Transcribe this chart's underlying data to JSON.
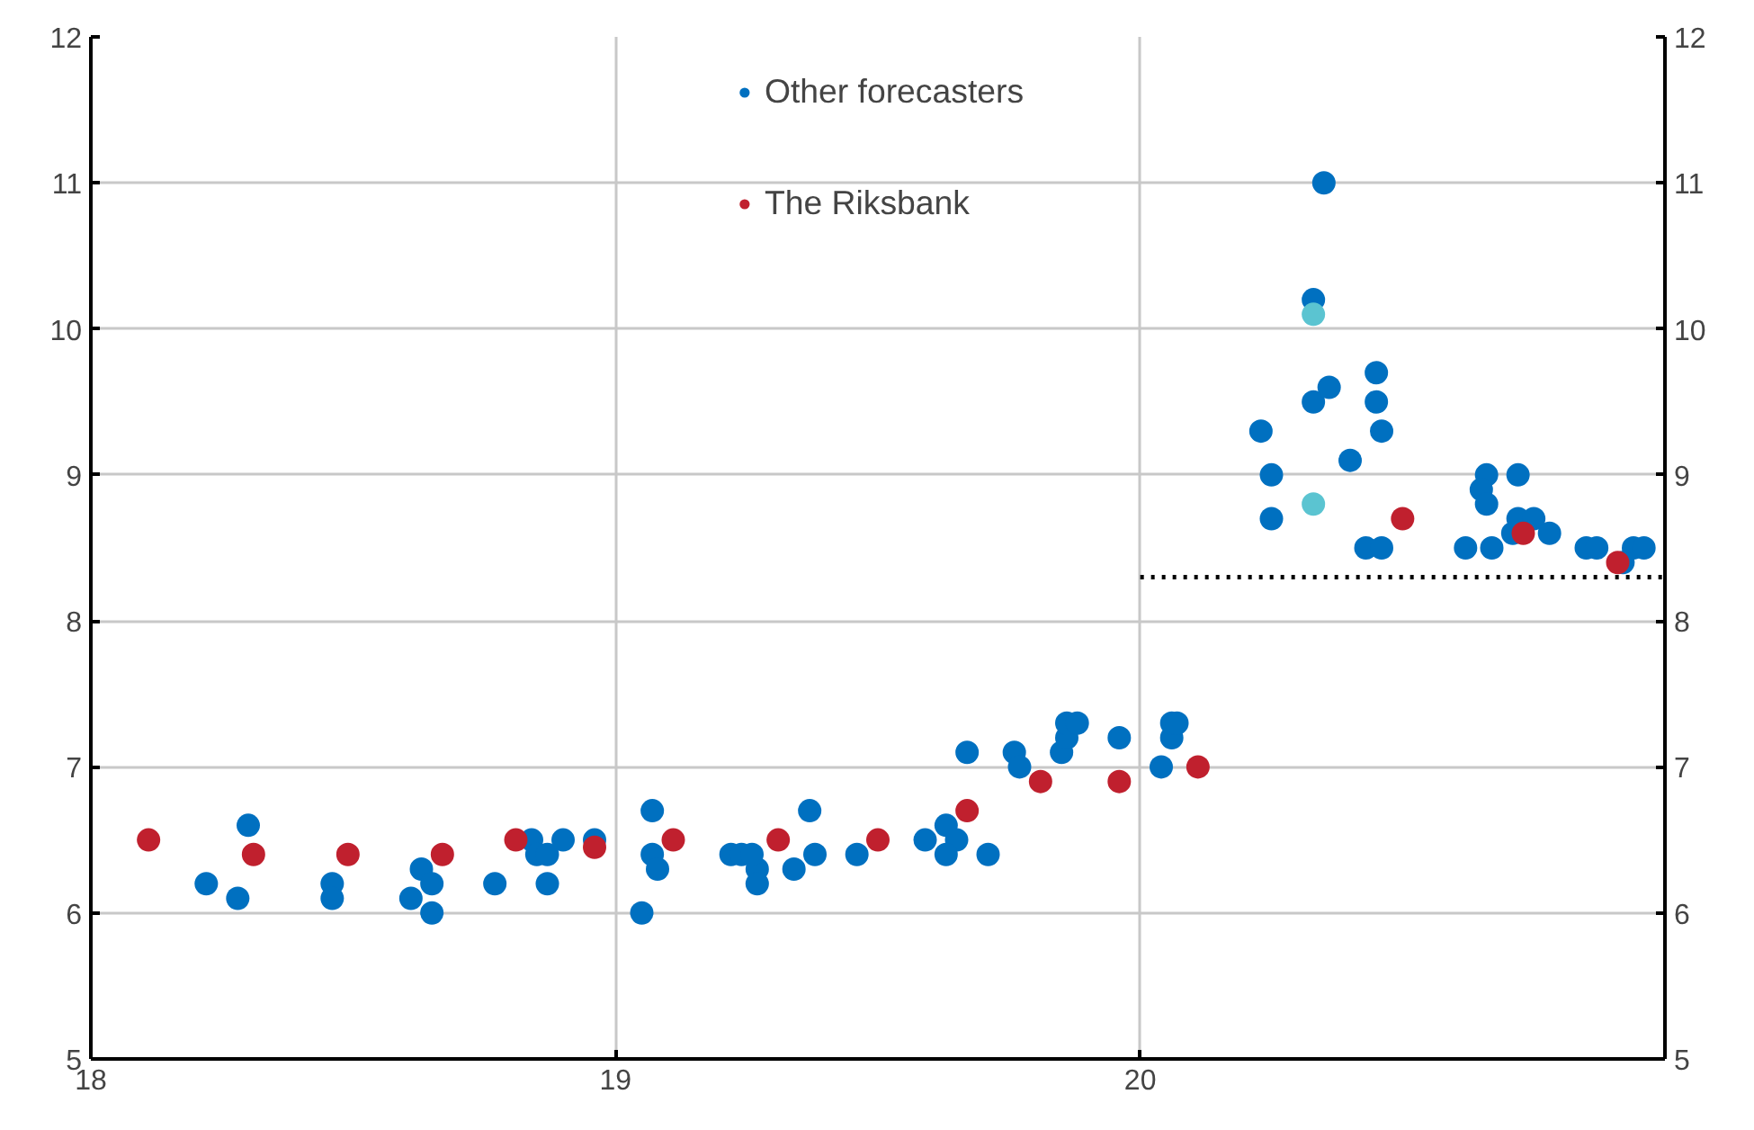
{
  "chart_data": {
    "type": "scatter",
    "series": [
      {
        "name": "Other forecasters",
        "color": "#0070c0",
        "marker": "circle",
        "x": [
          18.22,
          18.28,
          18.3,
          18.46,
          18.46,
          18.61,
          18.63,
          18.65,
          18.65,
          18.77,
          18.84,
          18.85,
          18.87,
          18.87,
          18.9,
          18.96,
          19.05,
          19.07,
          19.07,
          19.08,
          19.22,
          19.24,
          19.27,
          19.27,
          19.26,
          19.34,
          19.37,
          19.38,
          19.46,
          19.59,
          19.63,
          19.65,
          19.63,
          19.71,
          19.67,
          19.76,
          19.77,
          19.85,
          19.86,
          19.86,
          19.88,
          19.96,
          20.04,
          20.06,
          20.06,
          20.07,
          20.35,
          20.33,
          20.23,
          20.25,
          20.25,
          20.33,
          20.36,
          20.45,
          20.45,
          20.46,
          20.4,
          20.43,
          20.46,
          20.62,
          20.66,
          20.65,
          20.66,
          20.67,
          20.72,
          20.72,
          20.71,
          20.75,
          20.78,
          20.85,
          20.87,
          20.94,
          20.96,
          20.92
        ],
        "values": [
          6.2,
          6.1,
          6.6,
          6.2,
          6.1,
          6.1,
          6.3,
          6.2,
          6.0,
          6.2,
          6.5,
          6.4,
          6.4,
          6.2,
          6.5,
          6.5,
          6.0,
          6.7,
          6.4,
          6.3,
          6.4,
          6.4,
          6.3,
          6.2,
          6.4,
          6.3,
          6.7,
          6.4,
          6.4,
          6.5,
          6.6,
          6.5,
          6.4,
          6.4,
          7.1,
          7.1,
          7.0,
          7.1,
          7.2,
          7.3,
          7.3,
          7.2,
          7.0,
          7.2,
          7.3,
          7.3,
          11.0,
          10.2,
          9.3,
          9.0,
          8.7,
          9.5,
          9.6,
          9.7,
          9.5,
          9.3,
          9.1,
          8.5,
          8.5,
          8.5,
          9.0,
          8.9,
          8.8,
          8.5,
          9.0,
          8.7,
          8.6,
          8.7,
          8.6,
          8.5,
          8.5,
          8.5,
          8.5,
          8.4
        ]
      },
      {
        "color": "#5bc4d1",
        "marker": "circle",
        "x": [
          20.33,
          20.33
        ],
        "values": [
          10.1,
          8.8
        ]
      },
      {
        "name": "The Riksbank",
        "color": "#c0202e",
        "marker": "circle",
        "x": [
          18.11,
          18.31,
          18.49,
          18.67,
          18.81,
          18.96,
          19.11,
          19.31,
          19.5,
          19.67,
          19.81,
          19.96,
          20.11,
          20.5,
          20.73,
          20.91
        ],
        "values": [
          6.5,
          6.4,
          6.4,
          6.4,
          6.5,
          6.45,
          6.5,
          6.5,
          6.5,
          6.7,
          6.9,
          6.9,
          7.0,
          8.7,
          8.6,
          8.4
        ]
      },
      {
        "type": "line",
        "color": "#000000",
        "line_style": "dotted",
        "x": [
          20,
          21
        ],
        "values": [
          8.3,
          8.3
        ]
      }
    ],
    "xlim": [
      18,
      21
    ],
    "xticks": [
      18,
      19,
      20
    ],
    "ylim": [
      5,
      12
    ],
    "yticks": [
      5,
      6,
      7,
      8,
      9,
      10,
      11,
      12
    ],
    "y2lim": [
      5,
      12
    ],
    "y2ticks": [
      5,
      6,
      7,
      8,
      9,
      10,
      11,
      12
    ],
    "grid": true,
    "legend": "top"
  }
}
